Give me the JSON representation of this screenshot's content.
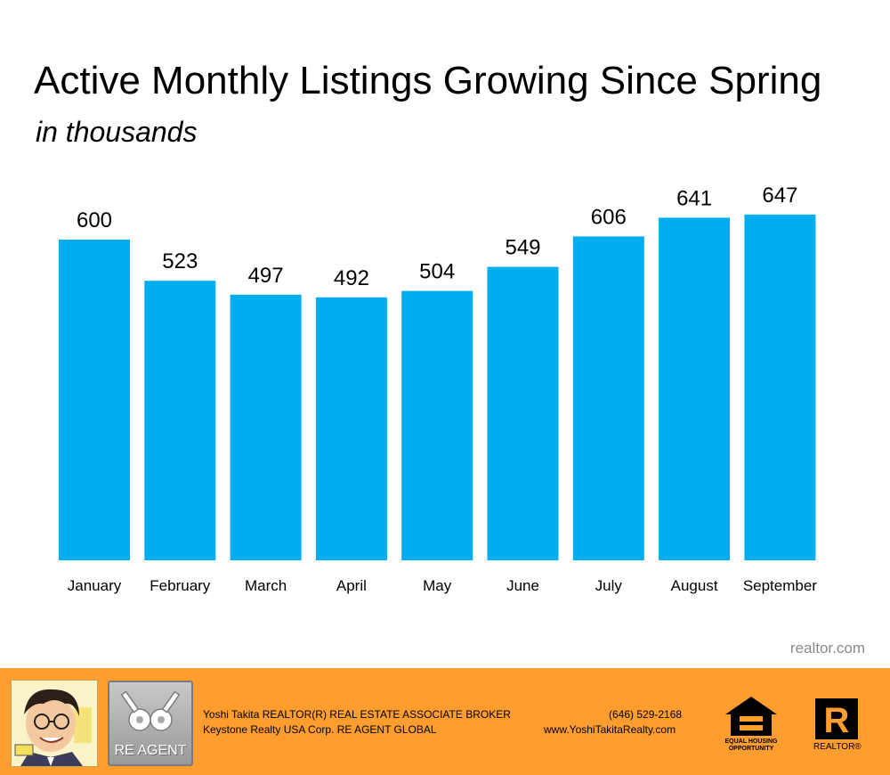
{
  "chart_data": {
    "type": "bar",
    "title": "Active Monthly Listings Growing Since Spring",
    "subtitle": "in thousands",
    "categories": [
      "January",
      "February",
      "March",
      "April",
      "May",
      "June",
      "July",
      "August",
      "September"
    ],
    "values": [
      600,
      523,
      497,
      492,
      504,
      549,
      606,
      641,
      647
    ],
    "data_labels": [
      "600",
      "523",
      "497",
      "492",
      "504",
      "549",
      "606",
      "641",
      "647"
    ],
    "xlabel": "",
    "ylabel": "",
    "ylim": [
      0,
      700
    ],
    "grid": false,
    "legend": "none",
    "bar_color": "#00adef"
  },
  "source": "realtor.com",
  "footer": {
    "agent_name": "Yoshi Takita REALTOR(R) REAL ESTATE ASSOCIATE BROKER",
    "company": "Keystone Realty USA Corp.  RE AGENT GLOBAL",
    "phone": "(646) 529-2168",
    "website": "www.YoshiTakitaRealty.com",
    "reagent_logo_text": "RE AGENT",
    "equal_housing_text": "EQUAL HOUSING OPPORTUNITY",
    "realtor_logo_text": "REALTOR®",
    "realtor_logo_letter": "R",
    "background_color": "#ff9d2e"
  }
}
